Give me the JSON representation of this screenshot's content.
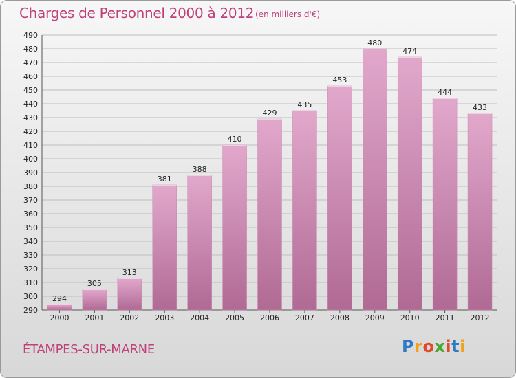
{
  "header": {
    "title": "Charges de Personnel 2000 à 2012",
    "subtitle": "(en milliers d'€)"
  },
  "footer": {
    "city": "ÉTAMPES-SUR-MARNE",
    "brand": "Proxiti",
    "brand_letters": [
      "P",
      "r",
      "o",
      "x",
      "i",
      "t",
      "i"
    ]
  },
  "colors": {
    "accent": "#c0407a",
    "bar_top": "#e2a8cc",
    "bar_bottom": "#b06a94",
    "grid": "#bdbdbd"
  },
  "chart_data": {
    "type": "bar",
    "title": "Charges de Personnel 2000 à 2012",
    "subtitle": "(en milliers d'€)",
    "categories": [
      "2000",
      "2001",
      "2002",
      "2003",
      "2004",
      "2005",
      "2006",
      "2007",
      "2008",
      "2009",
      "2010",
      "2011",
      "2012"
    ],
    "values": [
      294,
      305,
      313,
      381,
      388,
      410,
      429,
      435,
      453,
      480,
      474,
      444,
      433
    ],
    "ylim": [
      290,
      490
    ],
    "ytick_step": 10,
    "grid": true,
    "xlabel": "",
    "ylabel": ""
  }
}
